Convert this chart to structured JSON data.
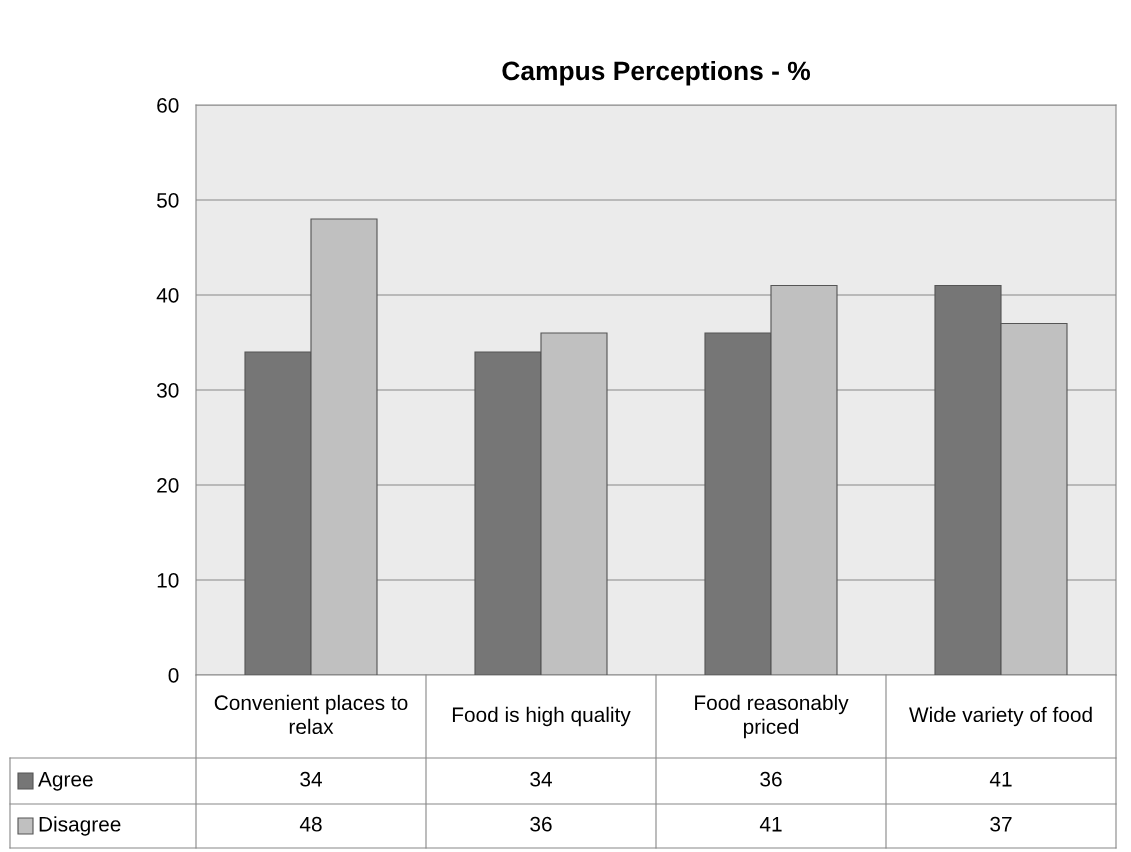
{
  "chart_data": {
    "type": "bar",
    "title": "Campus Perceptions - %",
    "categories": [
      "Convenient places to relax",
      "Food is high quality",
      "Food reasonably priced",
      "Wide variety of food"
    ],
    "series": [
      {
        "name": "Agree",
        "color": "#767676",
        "values": [
          34,
          34,
          36,
          41
        ]
      },
      {
        "name": "Disagree",
        "color": "#c0c0c0",
        "values": [
          48,
          36,
          41,
          37
        ]
      }
    ],
    "ylim": [
      0,
      60
    ],
    "yticks": [
      0,
      10,
      20,
      30,
      40,
      50,
      60
    ],
    "grid": "y",
    "legend": "bottom",
    "data_labels": true
  }
}
